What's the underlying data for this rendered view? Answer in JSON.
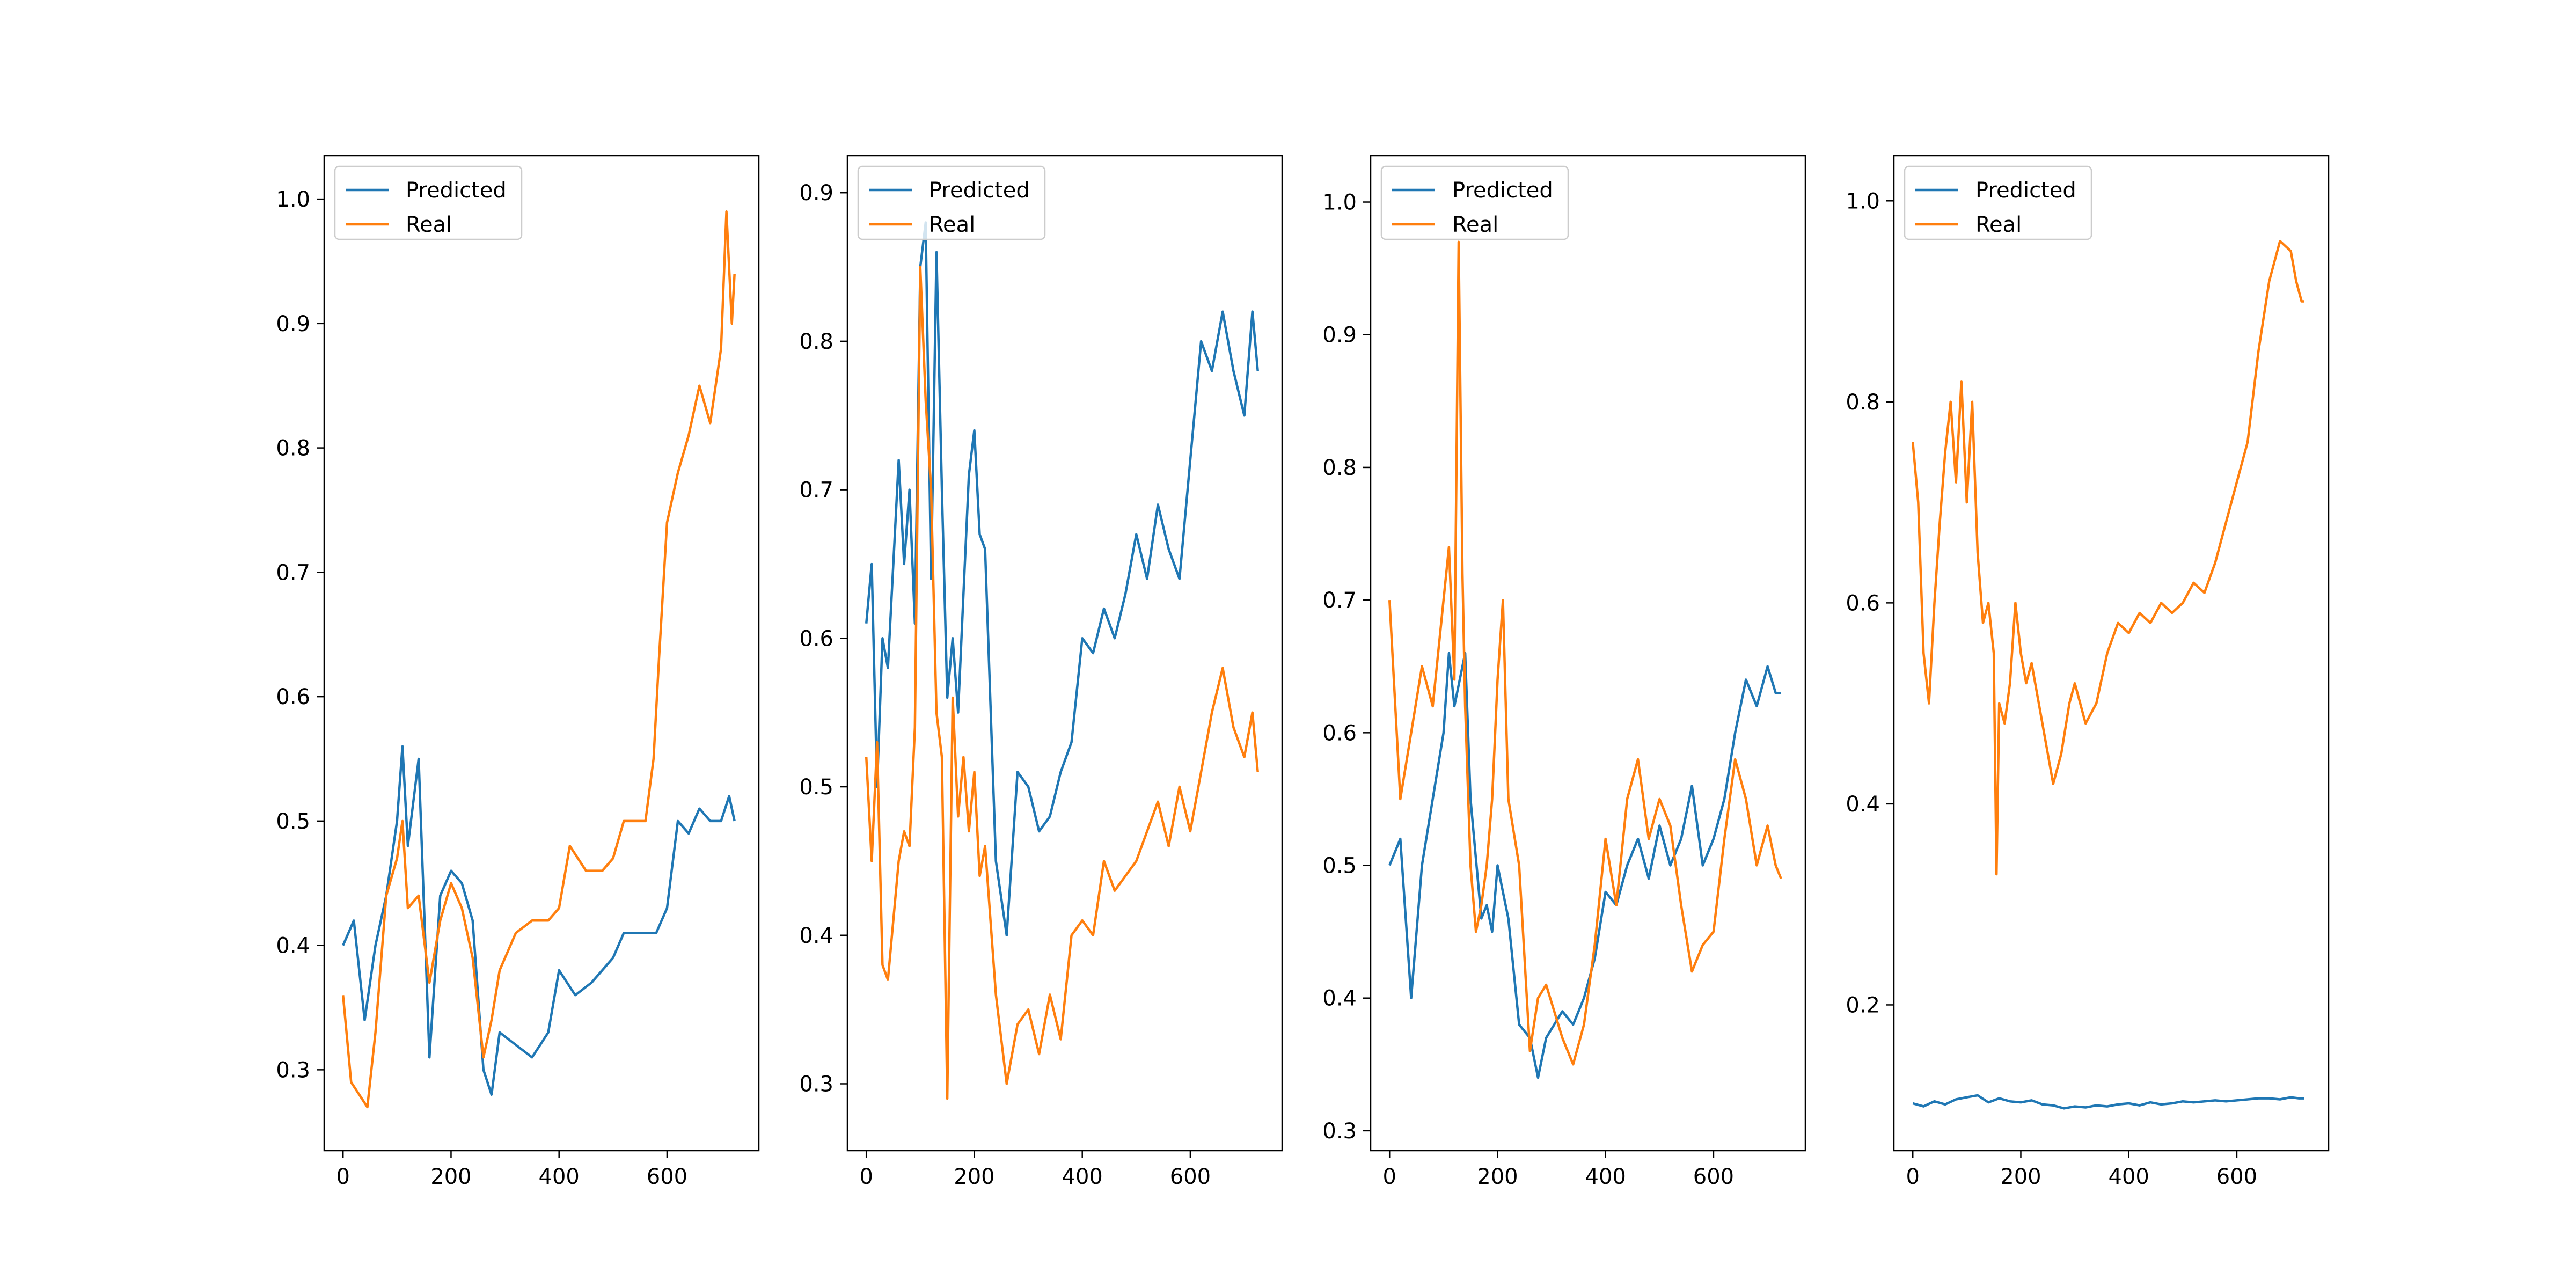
{
  "colors": {
    "predicted": "#1f77b4",
    "real": "#ff7f0e",
    "axis": "#000000",
    "legend_border": "#cccccc"
  },
  "chart_data": [
    {
      "type": "line",
      "xlim": [
        -35,
        770
      ],
      "ylim": [
        0.235,
        1.035
      ],
      "xticks": [
        0,
        200,
        400,
        600
      ],
      "yticks": [
        0.3,
        0.4,
        0.5,
        0.6,
        0.7,
        0.8,
        0.9,
        1.0
      ],
      "legend_position": "upper-left",
      "grid": false,
      "series": [
        {
          "name": "Predicted",
          "x": [
            0,
            20,
            40,
            60,
            80,
            100,
            110,
            120,
            140,
            160,
            180,
            200,
            220,
            240,
            260,
            275,
            290,
            320,
            350,
            380,
            400,
            430,
            460,
            480,
            500,
            520,
            540,
            560,
            580,
            600,
            620,
            640,
            660,
            680,
            700,
            715,
            725
          ],
          "values": [
            0.4,
            0.42,
            0.34,
            0.4,
            0.44,
            0.5,
            0.56,
            0.48,
            0.55,
            0.31,
            0.44,
            0.46,
            0.45,
            0.42,
            0.3,
            0.28,
            0.33,
            0.32,
            0.31,
            0.33,
            0.38,
            0.36,
            0.37,
            0.38,
            0.39,
            0.41,
            0.41,
            0.41,
            0.41,
            0.43,
            0.5,
            0.49,
            0.51,
            0.5,
            0.5,
            0.52,
            0.5
          ]
        },
        {
          "name": "Real",
          "x": [
            0,
            15,
            30,
            45,
            60,
            80,
            100,
            110,
            120,
            140,
            160,
            180,
            200,
            220,
            240,
            260,
            275,
            290,
            320,
            350,
            380,
            400,
            420,
            450,
            480,
            500,
            520,
            540,
            560,
            575,
            585,
            600,
            620,
            640,
            660,
            680,
            700,
            710,
            720,
            725
          ],
          "values": [
            0.36,
            0.29,
            0.28,
            0.27,
            0.33,
            0.44,
            0.47,
            0.5,
            0.43,
            0.44,
            0.37,
            0.42,
            0.45,
            0.43,
            0.39,
            0.31,
            0.34,
            0.38,
            0.41,
            0.42,
            0.42,
            0.43,
            0.48,
            0.46,
            0.46,
            0.47,
            0.5,
            0.5,
            0.5,
            0.55,
            0.63,
            0.74,
            0.78,
            0.81,
            0.85,
            0.82,
            0.88,
            0.99,
            0.9,
            0.94
          ]
        }
      ]
    },
    {
      "type": "line",
      "xlim": [
        -35,
        770
      ],
      "ylim": [
        0.255,
        0.925
      ],
      "xticks": [
        0,
        200,
        400,
        600
      ],
      "yticks": [
        0.3,
        0.4,
        0.5,
        0.6,
        0.7,
        0.8,
        0.9
      ],
      "legend_position": "upper-left",
      "grid": false,
      "series": [
        {
          "name": "Predicted",
          "x": [
            0,
            10,
            20,
            30,
            40,
            60,
            70,
            80,
            90,
            100,
            110,
            120,
            130,
            140,
            150,
            160,
            170,
            180,
            190,
            200,
            210,
            220,
            240,
            260,
            280,
            300,
            320,
            340,
            360,
            380,
            400,
            420,
            440,
            460,
            480,
            500,
            520,
            540,
            560,
            580,
            600,
            620,
            640,
            660,
            680,
            700,
            715,
            725
          ],
          "values": [
            0.61,
            0.65,
            0.5,
            0.6,
            0.58,
            0.72,
            0.65,
            0.7,
            0.61,
            0.85,
            0.88,
            0.64,
            0.86,
            0.7,
            0.56,
            0.6,
            0.55,
            0.63,
            0.71,
            0.74,
            0.67,
            0.66,
            0.45,
            0.4,
            0.51,
            0.5,
            0.47,
            0.48,
            0.51,
            0.53,
            0.6,
            0.59,
            0.62,
            0.6,
            0.63,
            0.67,
            0.64,
            0.69,
            0.66,
            0.64,
            0.72,
            0.8,
            0.78,
            0.82,
            0.78,
            0.75,
            0.82,
            0.78
          ]
        },
        {
          "name": "Real",
          "x": [
            0,
            10,
            20,
            30,
            40,
            60,
            70,
            80,
            90,
            100,
            110,
            120,
            130,
            140,
            150,
            160,
            170,
            180,
            190,
            200,
            210,
            220,
            240,
            260,
            280,
            300,
            320,
            340,
            360,
            380,
            400,
            420,
            440,
            460,
            480,
            500,
            520,
            540,
            560,
            580,
            600,
            620,
            640,
            660,
            680,
            700,
            715,
            725
          ],
          "values": [
            0.52,
            0.45,
            0.53,
            0.38,
            0.37,
            0.45,
            0.47,
            0.46,
            0.54,
            0.85,
            0.76,
            0.7,
            0.55,
            0.52,
            0.29,
            0.56,
            0.48,
            0.52,
            0.47,
            0.51,
            0.44,
            0.46,
            0.36,
            0.3,
            0.34,
            0.35,
            0.32,
            0.36,
            0.33,
            0.4,
            0.41,
            0.4,
            0.45,
            0.43,
            0.44,
            0.45,
            0.47,
            0.49,
            0.46,
            0.5,
            0.47,
            0.51,
            0.55,
            0.58,
            0.54,
            0.52,
            0.55,
            0.51
          ]
        }
      ]
    },
    {
      "type": "line",
      "xlim": [
        -35,
        770
      ],
      "ylim": [
        0.285,
        1.035
      ],
      "xticks": [
        0,
        200,
        400,
        600
      ],
      "yticks": [
        0.3,
        0.4,
        0.5,
        0.6,
        0.7,
        0.8,
        0.9,
        1.0
      ],
      "legend_position": "upper-left",
      "grid": false,
      "series": [
        {
          "name": "Predicted",
          "x": [
            0,
            20,
            40,
            60,
            80,
            100,
            110,
            120,
            140,
            150,
            170,
            180,
            190,
            200,
            210,
            220,
            240,
            260,
            275,
            290,
            320,
            340,
            360,
            380,
            400,
            420,
            440,
            460,
            480,
            500,
            520,
            540,
            560,
            580,
            600,
            620,
            640,
            660,
            680,
            700,
            715,
            725
          ],
          "values": [
            0.5,
            0.52,
            0.4,
            0.5,
            0.55,
            0.6,
            0.66,
            0.62,
            0.66,
            0.55,
            0.46,
            0.47,
            0.45,
            0.5,
            0.48,
            0.46,
            0.38,
            0.37,
            0.34,
            0.37,
            0.39,
            0.38,
            0.4,
            0.43,
            0.48,
            0.47,
            0.5,
            0.52,
            0.49,
            0.53,
            0.5,
            0.52,
            0.56,
            0.5,
            0.52,
            0.55,
            0.6,
            0.64,
            0.62,
            0.65,
            0.63,
            0.63
          ]
        },
        {
          "name": "Real",
          "x": [
            0,
            20,
            40,
            60,
            80,
            100,
            110,
            120,
            128,
            135,
            140,
            150,
            160,
            170,
            180,
            190,
            200,
            210,
            220,
            240,
            260,
            275,
            290,
            320,
            340,
            360,
            380,
            400,
            420,
            440,
            460,
            480,
            500,
            520,
            540,
            560,
            580,
            600,
            620,
            640,
            660,
            680,
            700,
            715,
            725
          ],
          "values": [
            0.7,
            0.55,
            0.6,
            0.65,
            0.62,
            0.7,
            0.74,
            0.64,
            0.97,
            0.72,
            0.62,
            0.5,
            0.45,
            0.47,
            0.5,
            0.55,
            0.64,
            0.7,
            0.55,
            0.5,
            0.36,
            0.4,
            0.41,
            0.37,
            0.35,
            0.38,
            0.44,
            0.52,
            0.47,
            0.55,
            0.58,
            0.52,
            0.55,
            0.53,
            0.47,
            0.42,
            0.44,
            0.45,
            0.52,
            0.58,
            0.55,
            0.5,
            0.53,
            0.5,
            0.49
          ]
        }
      ]
    },
    {
      "type": "line",
      "xlim": [
        -35,
        770
      ],
      "ylim": [
        0.055,
        1.045
      ],
      "xticks": [
        0,
        200,
        400,
        600
      ],
      "yticks": [
        0.2,
        0.4,
        0.6,
        0.8,
        1.0
      ],
      "legend_position": "upper-left",
      "grid": false,
      "series": [
        {
          "name": "Predicted",
          "x": [
            0,
            20,
            40,
            60,
            80,
            100,
            120,
            140,
            160,
            180,
            200,
            220,
            240,
            260,
            280,
            300,
            320,
            340,
            360,
            380,
            400,
            420,
            440,
            460,
            480,
            500,
            520,
            540,
            560,
            580,
            600,
            620,
            640,
            660,
            680,
            700,
            715,
            725
          ],
          "values": [
            0.102,
            0.099,
            0.104,
            0.101,
            0.106,
            0.108,
            0.11,
            0.103,
            0.107,
            0.104,
            0.103,
            0.105,
            0.101,
            0.1,
            0.097,
            0.099,
            0.098,
            0.1,
            0.099,
            0.101,
            0.102,
            0.1,
            0.103,
            0.101,
            0.102,
            0.104,
            0.103,
            0.104,
            0.105,
            0.104,
            0.105,
            0.106,
            0.107,
            0.107,
            0.106,
            0.108,
            0.107,
            0.107
          ]
        },
        {
          "name": "Real",
          "x": [
            0,
            10,
            20,
            30,
            40,
            50,
            60,
            70,
            80,
            90,
            100,
            110,
            120,
            130,
            140,
            150,
            155,
            160,
            170,
            180,
            190,
            200,
            210,
            220,
            240,
            260,
            275,
            290,
            300,
            320,
            340,
            360,
            380,
            400,
            420,
            440,
            460,
            480,
            500,
            520,
            540,
            560,
            580,
            600,
            620,
            640,
            660,
            680,
            700,
            710,
            720,
            725
          ],
          "values": [
            0.76,
            0.7,
            0.55,
            0.5,
            0.6,
            0.68,
            0.75,
            0.8,
            0.72,
            0.82,
            0.7,
            0.8,
            0.65,
            0.58,
            0.6,
            0.55,
            0.33,
            0.5,
            0.48,
            0.52,
            0.6,
            0.55,
            0.52,
            0.54,
            0.48,
            0.42,
            0.45,
            0.5,
            0.52,
            0.48,
            0.5,
            0.55,
            0.58,
            0.57,
            0.59,
            0.58,
            0.6,
            0.59,
            0.6,
            0.62,
            0.61,
            0.64,
            0.68,
            0.72,
            0.76,
            0.85,
            0.92,
            0.96,
            0.95,
            0.92,
            0.9,
            0.9
          ]
        }
      ]
    }
  ]
}
